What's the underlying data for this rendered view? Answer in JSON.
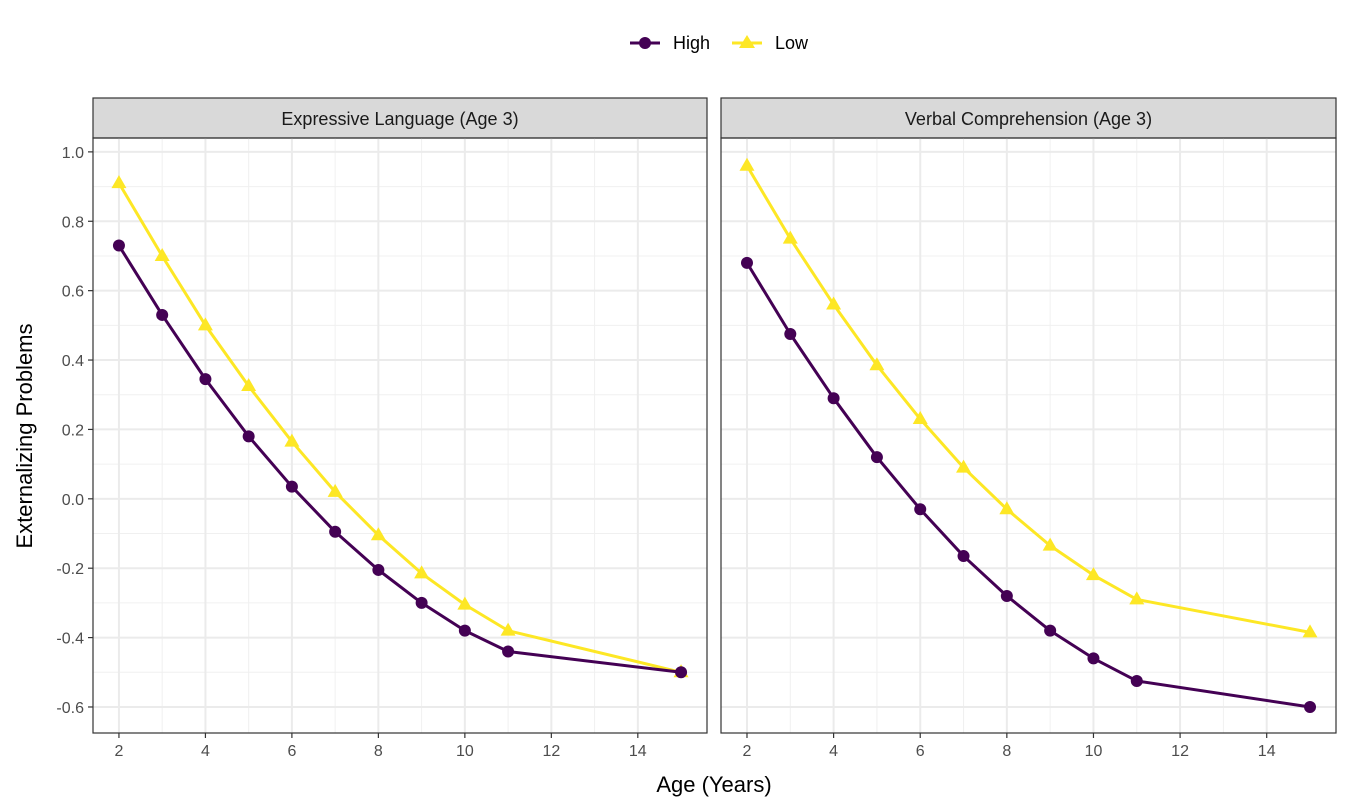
{
  "chart_data": {
    "type": "line",
    "xlabel": "Age (Years)",
    "ylabel": "Externalizing Problems",
    "xlim": [
      1.4,
      15.6
    ],
    "ylim": [
      -0.675,
      1.04
    ],
    "x_ticks": [
      2,
      4,
      6,
      8,
      10,
      12,
      14
    ],
    "x_tick_labels": [
      "2",
      "4",
      "6",
      "8",
      "10",
      "12",
      "14"
    ],
    "y_ticks": [
      -0.6,
      -0.4,
      -0.2,
      0.0,
      0.2,
      0.4,
      0.6,
      0.8,
      1.0
    ],
    "y_tick_labels": [
      "-0.6",
      "-0.4",
      "-0.2",
      "0.0",
      "0.2",
      "0.4",
      "0.6",
      "0.8",
      "1.0"
    ],
    "grid": true,
    "legend": {
      "position": "top",
      "entries": [
        {
          "name": "High",
          "color": "#440154",
          "marker": "circle"
        },
        {
          "name": "Low",
          "color": "#FDE725",
          "marker": "triangle"
        }
      ]
    },
    "panels": [
      {
        "title": "Expressive Language (Age 3)",
        "x": [
          2,
          3,
          4,
          5,
          6,
          7,
          8,
          9,
          10,
          11,
          15
        ],
        "series": [
          {
            "name": "High",
            "values": [
              0.73,
              0.53,
              0.345,
              0.18,
              0.035,
              -0.095,
              -0.205,
              -0.3,
              -0.38,
              -0.44,
              -0.5
            ]
          },
          {
            "name": "Low",
            "values": [
              0.91,
              0.7,
              0.5,
              0.325,
              0.165,
              0.02,
              -0.105,
              -0.215,
              -0.305,
              -0.38,
              -0.5
            ]
          }
        ]
      },
      {
        "title": "Verbal Comprehension (Age 3)",
        "x": [
          2,
          3,
          4,
          5,
          6,
          7,
          8,
          9,
          10,
          11,
          15
        ],
        "series": [
          {
            "name": "High",
            "values": [
              0.68,
              0.475,
              0.29,
              0.12,
              -0.03,
              -0.165,
              -0.28,
              -0.38,
              -0.46,
              -0.525,
              -0.6
            ]
          },
          {
            "name": "Low",
            "values": [
              0.96,
              0.75,
              0.56,
              0.385,
              0.23,
              0.09,
              -0.03,
              -0.135,
              -0.22,
              -0.29,
              -0.385
            ]
          }
        ]
      }
    ]
  }
}
